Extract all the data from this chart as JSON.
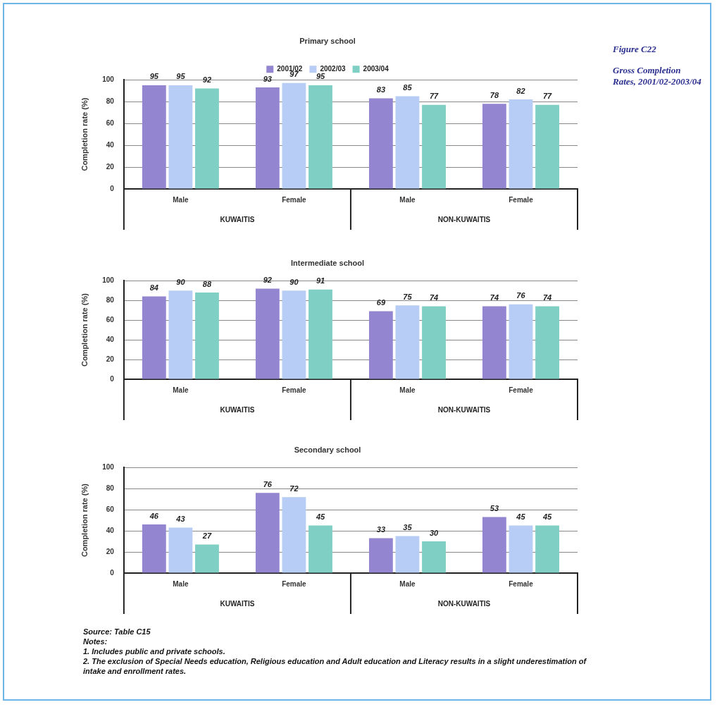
{
  "chart_data": [
    {
      "type": "bar",
      "title": "Primary school",
      "ylabel": "Completion rate (%)",
      "categories": [
        "Male",
        "Female",
        "Male",
        "Female"
      ],
      "series": [
        {
          "name": "2001/02",
          "color": "#9485d0",
          "values": [
            95,
            93,
            83,
            78
          ]
        },
        {
          "name": "2002/03",
          "color": "#b8cdf5",
          "values": [
            95,
            97,
            85,
            82
          ]
        },
        {
          "name": "2003/04",
          "color": "#7fcfc4",
          "values": [
            92,
            95,
            77,
            77
          ]
        }
      ],
      "ylim": [
        0,
        100
      ],
      "yticks": [
        0,
        20,
        40,
        60,
        80,
        100
      ],
      "grid": "y",
      "legend": "top",
      "data_labels": true,
      "annotations": [
        "KUWAITIS",
        "NON-KUWAITIS",
        "Figure C22",
        "Gross Completion Rates, 2001/02-2003/04"
      ]
    },
    {
      "type": "bar",
      "title": "Intermediate school",
      "ylabel": "Completion rate (%)",
      "categories": [
        "Male",
        "Female",
        "Male",
        "Female"
      ],
      "series": [
        {
          "color": "#9485d0",
          "values": [
            84,
            92,
            69,
            74
          ]
        },
        {
          "color": "#b8cdf5",
          "values": [
            90,
            90,
            75,
            76
          ]
        },
        {
          "color": "#7fcfc4",
          "values": [
            88,
            91,
            74,
            74
          ]
        }
      ],
      "ylim": [
        0,
        100
      ],
      "yticks": [
        0,
        20,
        40,
        60,
        80,
        100
      ],
      "grid": "y",
      "data_labels": true,
      "annotations": [
        "KUWAITIS",
        "NON-KUWAITIS"
      ]
    },
    {
      "type": "bar",
      "title": "Secondary school",
      "ylabel": "Completion rate (%)",
      "categories": [
        "Male",
        "Female",
        "Male",
        "Female"
      ],
      "series": [
        {
          "color": "#9485d0",
          "values": [
            46,
            76,
            33,
            53
          ]
        },
        {
          "color": "#b8cdf5",
          "values": [
            43,
            72,
            35,
            45
          ]
        },
        {
          "color": "#7fcfc4",
          "values": [
            27,
            45,
            30,
            45
          ]
        }
      ],
      "ylim": [
        0,
        100
      ],
      "yticks": [
        0,
        20,
        40,
        60,
        80,
        100
      ],
      "grid": "y",
      "data_labels": true,
      "annotations": [
        "KUWAITIS",
        "NON-KUWAITIS",
        "Source: Table C15",
        "Notes:",
        "1. Includes public and private schools.",
        "2. The exclusion of Special Needs education, Religious education and Adult education and Literacy results in a slight underestimation of intake and enrollment rates."
      ]
    }
  ]
}
